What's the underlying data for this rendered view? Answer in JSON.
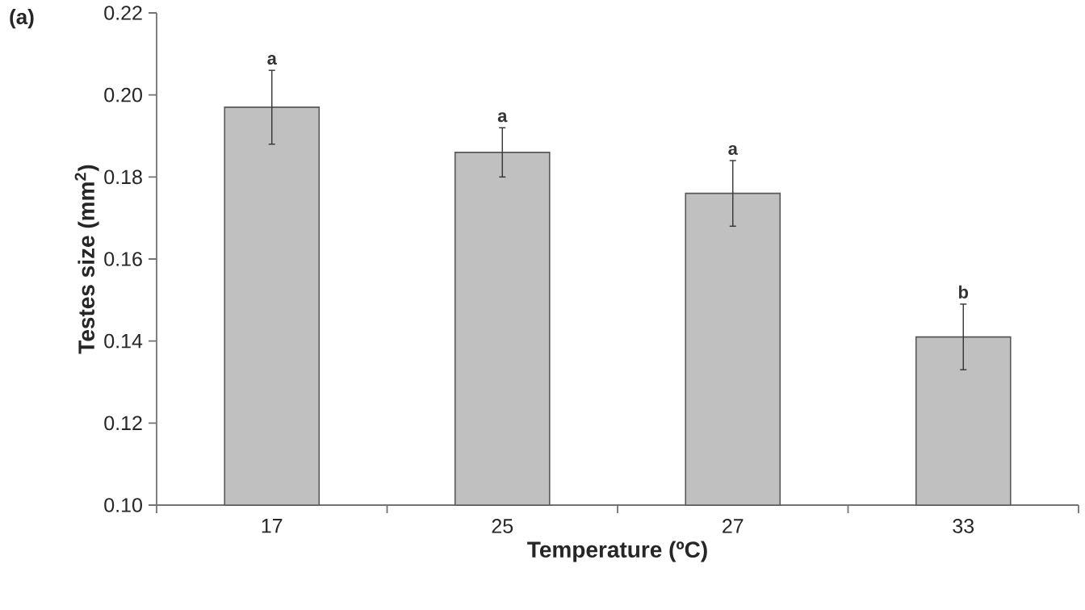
{
  "chart_data": {
    "type": "bar",
    "categories": [
      "17",
      "25",
      "27",
      "33"
    ],
    "values": [
      0.197,
      0.186,
      0.176,
      0.141
    ],
    "errors": [
      0.009,
      0.006,
      0.008,
      0.008
    ],
    "color": "#c0c0c0",
    "xlabel": "Temperature (ºC)",
    "ylabel": "Testes size (mm$^{2}$)",
    "ylim": [
      0.1,
      0.22
    ],
    "yticks": [
      {
        "value": 0.1,
        "label": "0.10"
      },
      0.12,
      0.14,
      0.16,
      0.18,
      {
        "value": 0.2,
        "label": "0.20"
      },
      0.22
    ],
    "grid": false,
    "annotations": [
      "(a)",
      {
        "text": "a",
        "x": "17",
        "y": 0.206
      },
      {
        "text": "a",
        "x": "25",
        "y": 0.192
      },
      {
        "text": "a",
        "x": "27",
        "y": 0.184
      },
      {
        "text": "b",
        "x": "33",
        "y": 0.149
      }
    ]
  }
}
